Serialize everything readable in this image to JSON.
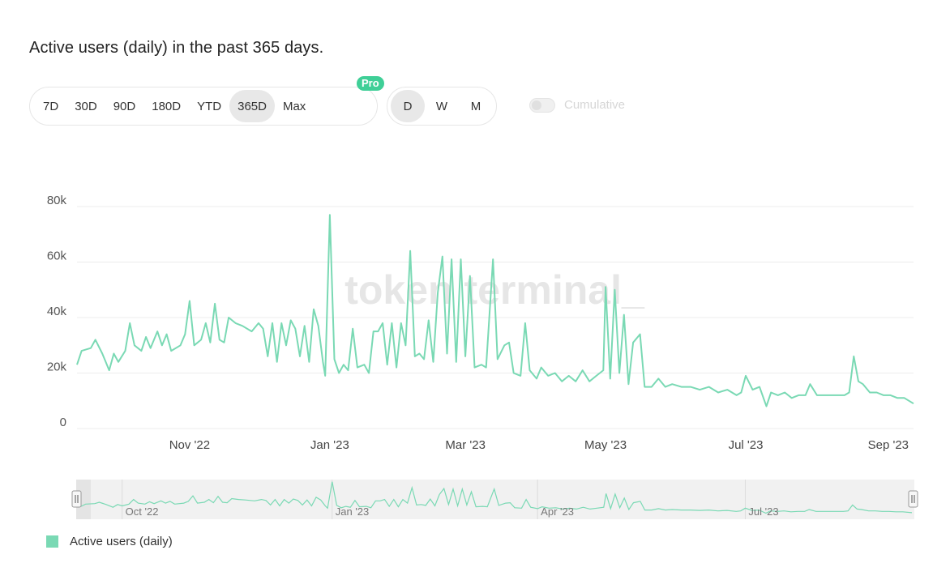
{
  "title": "Active users (daily) in the past 365 days.",
  "ranges": [
    "7D",
    "30D",
    "90D",
    "180D",
    "YTD",
    "365D",
    "Max"
  ],
  "active_range": "365D",
  "pro_badge": "Pro",
  "granularity": [
    "D",
    "W",
    "M"
  ],
  "active_granularity": "D",
  "cumulative_label": "Cumulative",
  "cumulative_enabled": false,
  "watermark": "token terminal_",
  "colors": {
    "series": "#7ad9b4",
    "accent": "#3fcf97"
  },
  "chart_data": {
    "type": "line",
    "title": "",
    "xlabel": "",
    "ylabel": "",
    "ylim": [
      0,
      80000
    ],
    "yticks": [
      0,
      20000,
      40000,
      60000,
      80000
    ],
    "ytick_labels": [
      "0",
      "20k",
      "40k",
      "60k",
      "80k"
    ],
    "xlim": [
      "2022-09-13",
      "2023-09-12"
    ],
    "xticks": [
      "2022-11-01",
      "2023-01-01",
      "2023-03-01",
      "2023-05-01",
      "2023-07-01",
      "2023-09-01"
    ],
    "xtick_labels": [
      "Nov '22",
      "Jan '23",
      "Mar '23",
      "May '23",
      "Jul '23",
      "Sep '23"
    ],
    "grid": true,
    "legend": "bottom-left",
    "series": [
      {
        "name": "Active users (daily)",
        "points": [
          [
            "2022-09-13",
            23000
          ],
          [
            "2022-09-15",
            28000
          ],
          [
            "2022-09-19",
            29000
          ],
          [
            "2022-09-21",
            32000
          ],
          [
            "2022-09-24",
            27000
          ],
          [
            "2022-09-27",
            21000
          ],
          [
            "2022-09-29",
            27000
          ],
          [
            "2022-10-01",
            24000
          ],
          [
            "2022-10-04",
            28000
          ],
          [
            "2022-10-06",
            38000
          ],
          [
            "2022-10-08",
            30000
          ],
          [
            "2022-10-11",
            28000
          ],
          [
            "2022-10-13",
            33000
          ],
          [
            "2022-10-15",
            29000
          ],
          [
            "2022-10-18",
            35000
          ],
          [
            "2022-10-20",
            30000
          ],
          [
            "2022-10-22",
            34000
          ],
          [
            "2022-10-24",
            28000
          ],
          [
            "2022-10-28",
            30000
          ],
          [
            "2022-10-30",
            34000
          ],
          [
            "2022-11-01",
            46000
          ],
          [
            "2022-11-03",
            30000
          ],
          [
            "2022-11-06",
            32000
          ],
          [
            "2022-11-08",
            38000
          ],
          [
            "2022-11-10",
            31000
          ],
          [
            "2022-11-12",
            45000
          ],
          [
            "2022-11-14",
            32000
          ],
          [
            "2022-11-16",
            31000
          ],
          [
            "2022-11-18",
            40000
          ],
          [
            "2022-11-21",
            38000
          ],
          [
            "2022-11-24",
            37000
          ],
          [
            "2022-11-28",
            35000
          ],
          [
            "2022-12-01",
            38000
          ],
          [
            "2022-12-03",
            36000
          ],
          [
            "2022-12-05",
            26000
          ],
          [
            "2022-12-07",
            38000
          ],
          [
            "2022-12-09",
            24000
          ],
          [
            "2022-12-11",
            38000
          ],
          [
            "2022-12-13",
            30000
          ],
          [
            "2022-12-15",
            39000
          ],
          [
            "2022-12-17",
            36000
          ],
          [
            "2022-12-19",
            26000
          ],
          [
            "2022-12-21",
            37000
          ],
          [
            "2022-12-23",
            24000
          ],
          [
            "2022-12-25",
            43000
          ],
          [
            "2022-12-27",
            37000
          ],
          [
            "2022-12-29",
            24000
          ],
          [
            "2022-12-30",
            19000
          ],
          [
            "2023-01-01",
            77000
          ],
          [
            "2023-01-03",
            25000
          ],
          [
            "2023-01-05",
            20000
          ],
          [
            "2023-01-07",
            23000
          ],
          [
            "2023-01-09",
            21000
          ],
          [
            "2023-01-11",
            36000
          ],
          [
            "2023-01-13",
            22000
          ],
          [
            "2023-01-16",
            23000
          ],
          [
            "2023-01-18",
            20000
          ],
          [
            "2023-01-20",
            35000
          ],
          [
            "2023-01-22",
            35000
          ],
          [
            "2023-01-24",
            38000
          ],
          [
            "2023-01-26",
            23000
          ],
          [
            "2023-01-28",
            38000
          ],
          [
            "2023-01-30",
            22000
          ],
          [
            "2023-02-01",
            38000
          ],
          [
            "2023-02-03",
            30000
          ],
          [
            "2023-02-05",
            64000
          ],
          [
            "2023-02-07",
            26000
          ],
          [
            "2023-02-09",
            27000
          ],
          [
            "2023-02-11",
            25000
          ],
          [
            "2023-02-13",
            39000
          ],
          [
            "2023-02-15",
            24000
          ],
          [
            "2023-02-17",
            49000
          ],
          [
            "2023-02-19",
            62000
          ],
          [
            "2023-02-21",
            27000
          ],
          [
            "2023-02-23",
            61000
          ],
          [
            "2023-02-25",
            24000
          ],
          [
            "2023-02-27",
            61000
          ],
          [
            "2023-03-01",
            26000
          ],
          [
            "2023-03-03",
            55000
          ],
          [
            "2023-03-05",
            22000
          ],
          [
            "2023-03-08",
            23000
          ],
          [
            "2023-03-10",
            22000
          ],
          [
            "2023-03-13",
            61000
          ],
          [
            "2023-03-15",
            25000
          ],
          [
            "2023-03-18",
            30000
          ],
          [
            "2023-03-20",
            31000
          ],
          [
            "2023-03-22",
            20000
          ],
          [
            "2023-03-25",
            19000
          ],
          [
            "2023-03-27",
            38000
          ],
          [
            "2023-03-29",
            21000
          ],
          [
            "2023-04-01",
            18000
          ],
          [
            "2023-04-03",
            22000
          ],
          [
            "2023-04-06",
            19000
          ],
          [
            "2023-04-09",
            20000
          ],
          [
            "2023-04-12",
            17000
          ],
          [
            "2023-04-15",
            19000
          ],
          [
            "2023-04-18",
            17000
          ],
          [
            "2023-04-21",
            21000
          ],
          [
            "2023-04-24",
            17000
          ],
          [
            "2023-04-27",
            19000
          ],
          [
            "2023-04-30",
            21000
          ],
          [
            "2023-05-01",
            51000
          ],
          [
            "2023-05-03",
            18000
          ],
          [
            "2023-05-05",
            50000
          ],
          [
            "2023-05-07",
            20000
          ],
          [
            "2023-05-09",
            41000
          ],
          [
            "2023-05-11",
            16000
          ],
          [
            "2023-05-13",
            31000
          ],
          [
            "2023-05-16",
            34000
          ],
          [
            "2023-05-18",
            15000
          ],
          [
            "2023-05-21",
            15000
          ],
          [
            "2023-05-24",
            18000
          ],
          [
            "2023-05-27",
            15000
          ],
          [
            "2023-05-30",
            16000
          ],
          [
            "2023-06-03",
            15000
          ],
          [
            "2023-06-07",
            15000
          ],
          [
            "2023-06-11",
            14000
          ],
          [
            "2023-06-15",
            15000
          ],
          [
            "2023-06-19",
            13000
          ],
          [
            "2023-06-23",
            14000
          ],
          [
            "2023-06-27",
            12000
          ],
          [
            "2023-06-29",
            13000
          ],
          [
            "2023-07-01",
            19000
          ],
          [
            "2023-07-04",
            14000
          ],
          [
            "2023-07-07",
            15000
          ],
          [
            "2023-07-10",
            8000
          ],
          [
            "2023-07-12",
            13000
          ],
          [
            "2023-07-15",
            12000
          ],
          [
            "2023-07-18",
            13000
          ],
          [
            "2023-07-21",
            11000
          ],
          [
            "2023-07-24",
            12000
          ],
          [
            "2023-07-27",
            12000
          ],
          [
            "2023-07-29",
            16000
          ],
          [
            "2023-08-01",
            12000
          ],
          [
            "2023-08-04",
            12000
          ],
          [
            "2023-08-07",
            12000
          ],
          [
            "2023-08-10",
            12000
          ],
          [
            "2023-08-13",
            12000
          ],
          [
            "2023-08-15",
            13000
          ],
          [
            "2023-08-17",
            26000
          ],
          [
            "2023-08-19",
            17000
          ],
          [
            "2023-08-21",
            16000
          ],
          [
            "2023-08-24",
            13000
          ],
          [
            "2023-08-27",
            13000
          ],
          [
            "2023-08-30",
            12000
          ],
          [
            "2023-09-02",
            12000
          ],
          [
            "2023-09-05",
            11000
          ],
          [
            "2023-09-08",
            11000
          ],
          [
            "2023-09-12",
            9000
          ]
        ]
      }
    ],
    "navigator": {
      "tick_labels": [
        "Oct '22",
        "Jan '23",
        "Apr '23",
        "Jul '23"
      ],
      "ticks": [
        "2022-10-01",
        "2023-01-01",
        "2023-04-01",
        "2023-07-01"
      ]
    }
  }
}
